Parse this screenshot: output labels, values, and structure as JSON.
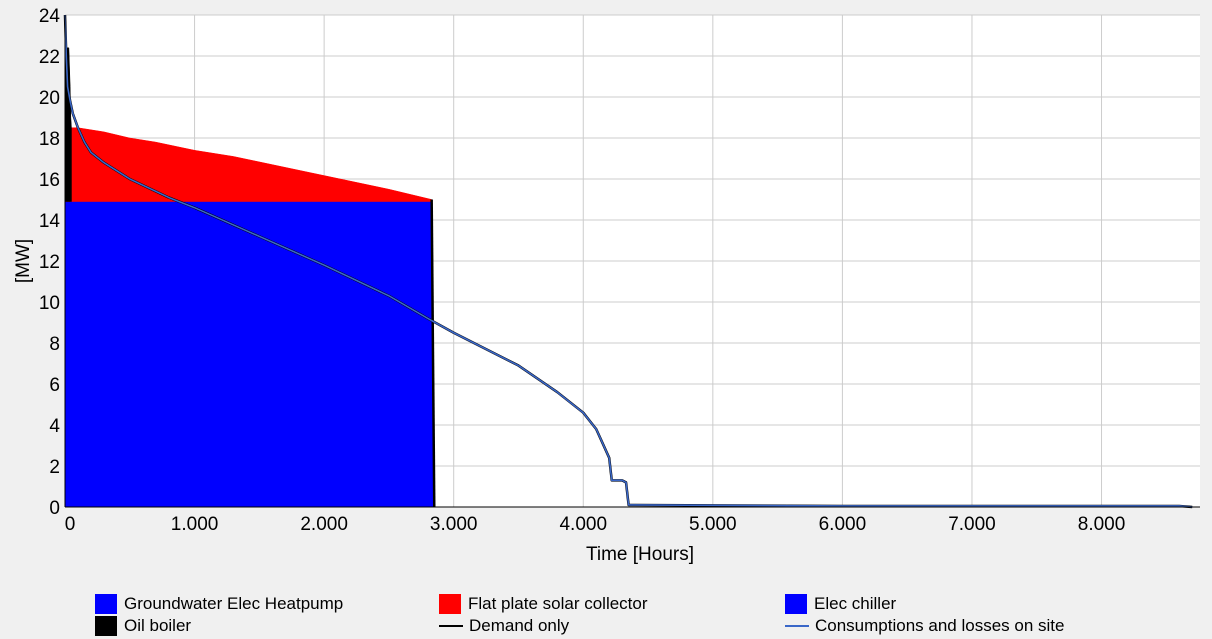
{
  "chart_data": {
    "type": "area",
    "xlabel": "Time [Hours]",
    "ylabel": "[MW]",
    "xlim": [
      0,
      8760
    ],
    "ylim": [
      0,
      24
    ],
    "x_ticks": [
      0,
      1000,
      2000,
      3000,
      4000,
      5000,
      6000,
      7000,
      8000
    ],
    "x_tick_labels": [
      "0",
      "1.000",
      "2.000",
      "3.000",
      "4.000",
      "5.000",
      "6.000",
      "7.000",
      "8.000"
    ],
    "y_ticks": [
      0,
      2,
      4,
      6,
      8,
      10,
      12,
      14,
      16,
      18,
      20,
      22,
      24
    ],
    "y_tick_labels": [
      "0",
      "2",
      "4",
      "6",
      "8",
      "10",
      "12",
      "14",
      "16",
      "18",
      "20",
      "22",
      "24"
    ],
    "grid": true,
    "legend_position": "bottom",
    "series": [
      {
        "name": "Groundwater Elec Heatpump",
        "kind": "area",
        "color": "#0000ff",
        "x": [
          0,
          40,
          2830,
          2840,
          2850
        ],
        "y": [
          14.9,
          14.9,
          14.9,
          10,
          0
        ]
      },
      {
        "name": "Flat plate solar collector",
        "kind": "area",
        "color": "#ff0000",
        "x": [
          0,
          100,
          300,
          500,
          700,
          1000,
          1300,
          1600,
          1900,
          2200,
          2500,
          2830
        ],
        "y": [
          18.5,
          18.5,
          18.3,
          18.0,
          17.8,
          17.4,
          17.1,
          16.7,
          16.3,
          15.9,
          15.5,
          15.0
        ]
      },
      {
        "name": "Elec chiller",
        "kind": "area",
        "color": "#0000ff",
        "x": [],
        "y": []
      },
      {
        "name": "Oil boiler",
        "kind": "area",
        "color": "#000000",
        "x": [
          0,
          5,
          10,
          15,
          30,
          40,
          45,
          50
        ],
        "y": [
          24,
          23.2,
          22.0,
          22.4,
          22.4,
          20.5,
          19.0,
          18.5
        ]
      },
      {
        "name": "Demand only",
        "kind": "line",
        "color": "#000000",
        "x": [
          0,
          10,
          20,
          40,
          60,
          100,
          150,
          200,
          300,
          500,
          800,
          1000,
          1500,
          2000,
          2500,
          2800,
          3000,
          3500,
          3800,
          4000,
          4100,
          4150,
          4200,
          4220,
          4300,
          4330,
          4350,
          5000,
          6000,
          7000,
          8000,
          8600,
          8700
        ],
        "y": [
          24,
          22,
          20.5,
          19.8,
          19.2,
          18.5,
          17.8,
          17.3,
          16.8,
          16.0,
          15.1,
          14.6,
          13.2,
          11.8,
          10.3,
          9.2,
          8.5,
          6.9,
          5.6,
          4.6,
          3.8,
          3.1,
          2.4,
          1.3,
          1.3,
          1.2,
          0.1,
          0.08,
          0.05,
          0.05,
          0.05,
          0.05,
          0
        ]
      },
      {
        "name": "Consumptions and losses on site",
        "kind": "line",
        "color": "#3a67c8",
        "x": [
          0,
          10,
          20,
          40,
          60,
          100,
          150,
          200,
          300,
          500,
          800,
          1000,
          1500,
          2000,
          2500,
          2800,
          3000,
          3500,
          3800,
          4000,
          4100,
          4150,
          4200,
          4220,
          4300,
          4330,
          4350,
          5000,
          6000,
          7000,
          8000,
          8600,
          8700
        ],
        "y": [
          24,
          22,
          20.5,
          19.8,
          19.2,
          18.5,
          17.8,
          17.3,
          16.8,
          16.0,
          15.1,
          14.6,
          13.2,
          11.8,
          10.3,
          9.2,
          8.5,
          6.9,
          5.6,
          4.6,
          3.8,
          3.1,
          2.4,
          1.3,
          1.3,
          1.2,
          0.1,
          0.08,
          0.05,
          0.05,
          0.05,
          0.05,
          0
        ]
      }
    ]
  },
  "legend": {
    "items": [
      {
        "label": "Groundwater Elec Heatpump",
        "type": "swatch",
        "color": "#0000ff"
      },
      {
        "label": "Flat plate solar collector",
        "type": "swatch",
        "color": "#ff0000"
      },
      {
        "label": "Elec chiller",
        "type": "swatch",
        "color": "#0000ff"
      },
      {
        "label": "Oil boiler",
        "type": "swatch",
        "color": "#000000"
      },
      {
        "label": "Demand only",
        "type": "line",
        "color": "#000000"
      },
      {
        "label": "Consumptions and losses on site",
        "type": "line",
        "color": "#3a67c8"
      }
    ]
  }
}
